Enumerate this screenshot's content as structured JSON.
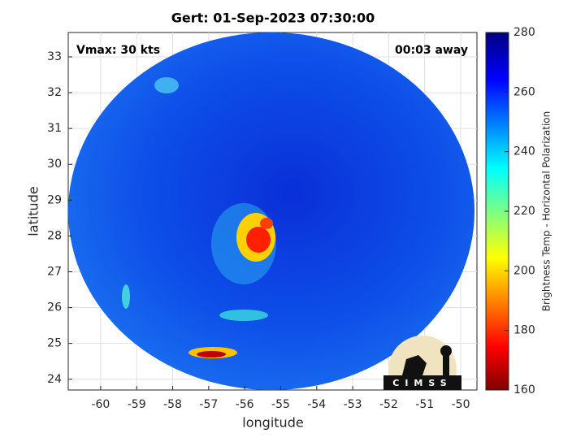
{
  "chart_data": {
    "type": "map",
    "title": "Gert: 01-Sep-2023 07:30:00",
    "xlabel": "longitude",
    "ylabel": "latitude",
    "xlim": [
      -60.9,
      -49.55
    ],
    "ylim": [
      23.7,
      33.68
    ],
    "xticks": [
      -60,
      -59,
      -58,
      -57,
      -56,
      -55,
      -54,
      -53,
      -52,
      -51,
      -50
    ],
    "yticks": [
      24,
      25,
      26,
      27,
      28,
      29,
      30,
      31,
      32,
      33
    ],
    "grid": true,
    "annotations": [
      "Vmax: 30 kts",
      "00:03 away"
    ],
    "logo": "CIMSS",
    "colorbar": {
      "label": "Brightness Temp - Horizontal Polarization",
      "lim": [
        160,
        280
      ],
      "ticks": [
        160,
        180,
        200,
        220,
        240,
        260,
        280
      ],
      "colormap": "jet"
    }
  }
}
